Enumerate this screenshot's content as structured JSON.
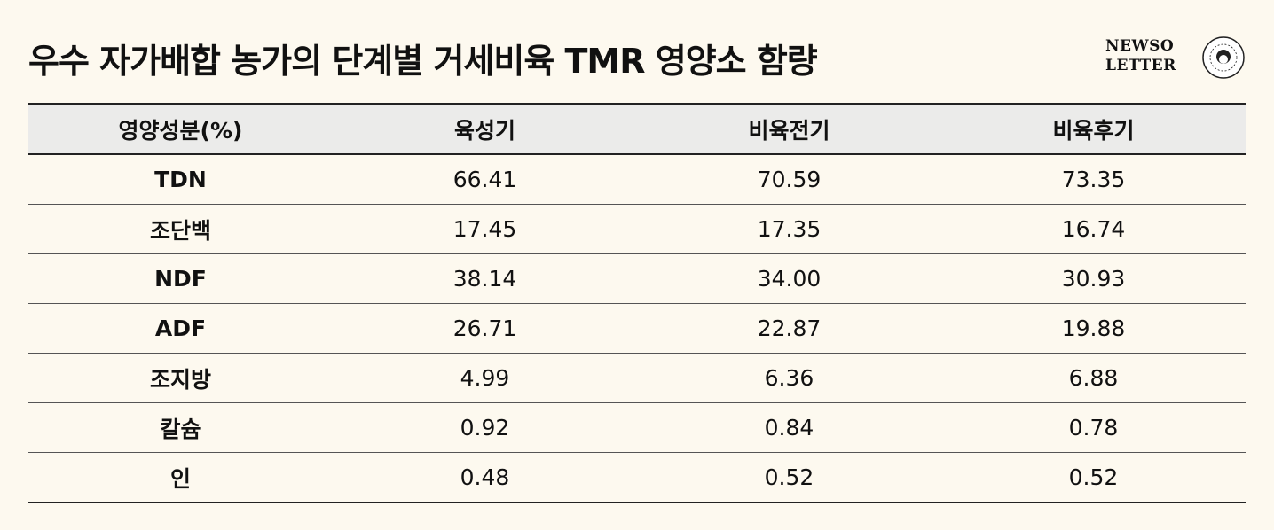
{
  "header": {
    "title": "우수 자가배합 농가의 단계별 거세비육 TMR 영양소 함량",
    "logo": [
      "NEWSO",
      "LETTER"
    ]
  },
  "table": {
    "columns": [
      "영양성분(%)",
      "육성기",
      "비육전기",
      "비육후기"
    ],
    "rows": [
      [
        "TDN",
        "66.41",
        "70.59",
        "73.35"
      ],
      [
        "조단백",
        "17.45",
        "17.35",
        "16.74"
      ],
      [
        "NDF",
        "38.14",
        "34.00",
        "30.93"
      ],
      [
        "ADF",
        "26.71",
        "22.87",
        "19.88"
      ],
      [
        "조지방",
        "4.99",
        "6.36",
        "6.88"
      ],
      [
        "칼슘",
        "0.92",
        "0.84",
        "0.78"
      ],
      [
        "인",
        "0.48",
        "0.52",
        "0.52"
      ]
    ]
  }
}
